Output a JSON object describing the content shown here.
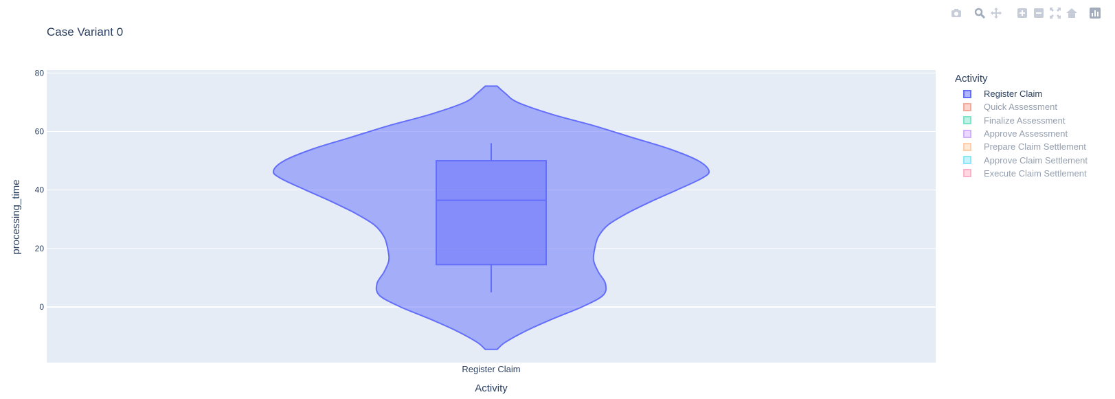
{
  "chart_data": {
    "type": "violin",
    "title": "Case Variant 0",
    "xlabel": "Activity",
    "ylabel": "processing_time",
    "categories": [
      "Register Claim"
    ],
    "ylim": [
      -19,
      81
    ],
    "yticks": [
      0,
      20,
      40,
      60,
      80
    ],
    "grid": true,
    "legend_title": "Activity",
    "legend_placement": "right",
    "series": [
      {
        "name": "Register Claim",
        "visible": true,
        "color": "#636efa",
        "box": {
          "q1": 14.5,
          "median": 36.5,
          "q3": 50,
          "whisker_low": 5,
          "whisker_high": 56
        },
        "density": [
          [
            -14.5,
            0.05
          ],
          [
            -12,
            0.12
          ],
          [
            -8,
            0.3
          ],
          [
            -4,
            0.52
          ],
          [
            0,
            0.76
          ],
          [
            4,
            0.94
          ],
          [
            8,
            0.96
          ],
          [
            12,
            0.9
          ],
          [
            16,
            0.86
          ],
          [
            20,
            0.87
          ],
          [
            24,
            0.9
          ],
          [
            28,
            0.98
          ],
          [
            32,
            1.14
          ],
          [
            36,
            1.34
          ],
          [
            40,
            1.56
          ],
          [
            44,
            1.77
          ],
          [
            46.5,
            1.83
          ],
          [
            50,
            1.74
          ],
          [
            54,
            1.5
          ],
          [
            58,
            1.18
          ],
          [
            62,
            0.86
          ],
          [
            66,
            0.5
          ],
          [
            70,
            0.22
          ],
          [
            73,
            0.12
          ],
          [
            75.5,
            0.05
          ]
        ]
      },
      {
        "name": "Quick Assessment",
        "visible": false,
        "color": "#EF553B"
      },
      {
        "name": "Finalize Assessment",
        "visible": false,
        "color": "#00cc96"
      },
      {
        "name": "Approve Assessment",
        "visible": false,
        "color": "#ab63fa"
      },
      {
        "name": "Prepare Claim Settlement",
        "visible": false,
        "color": "#FFA15A"
      },
      {
        "name": "Approve Claim Settlement",
        "visible": false,
        "color": "#19d3f3"
      },
      {
        "name": "Execute Claim Settlement",
        "visible": false,
        "color": "#FF6692"
      }
    ]
  },
  "modebar": {
    "icons": [
      "camera-icon",
      "zoom-icon",
      "pan-icon",
      "zoom-in-icon",
      "zoom-out-icon",
      "autoscale-icon",
      "reset-axes-icon",
      "plotly-logo-icon"
    ]
  },
  "colors": {
    "plot_bg": "#e5ecf6",
    "grid": "#ffffff",
    "text": "#2a3f5f",
    "modebar": "#c7cdd8"
  }
}
